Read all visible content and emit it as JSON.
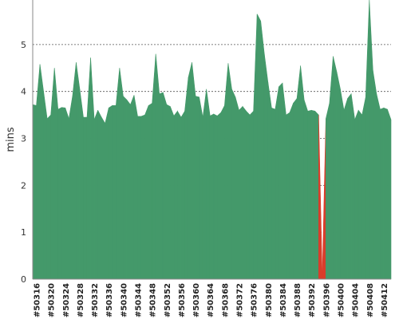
{
  "chart_data": {
    "type": "area",
    "ylabel": "mins",
    "xlabel": "",
    "title": "",
    "ylim": [
      0,
      5.95
    ],
    "yticks": [
      0,
      1,
      2,
      3,
      4,
      5
    ],
    "grid": "horizontal dashed",
    "colors": {
      "ok": "#44996a",
      "fail": "#d93d2b",
      "grid": "#555555",
      "axis": "#888888"
    },
    "tick_labels": [
      "#50316",
      "#50320",
      "#50324",
      "#50328",
      "#50332",
      "#50336",
      "#50340",
      "#50344",
      "#50348",
      "#50352",
      "#50356",
      "#50360",
      "#50364",
      "#50368",
      "#50372",
      "#50376",
      "#50380",
      "#50384",
      "#50388",
      "#50392",
      "#50396",
      "#50400",
      "#50404",
      "#50408",
      "#50412"
    ],
    "x": [
      50315,
      50316,
      50317,
      50318,
      50319,
      50320,
      50321,
      50322,
      50323,
      50324,
      50325,
      50326,
      50327,
      50328,
      50329,
      50330,
      50331,
      50332,
      50333,
      50334,
      50335,
      50336,
      50337,
      50338,
      50339,
      50340,
      50341,
      50342,
      50343,
      50344,
      50345,
      50346,
      50347,
      50348,
      50349,
      50350,
      50351,
      50352,
      50353,
      50354,
      50355,
      50356,
      50357,
      50358,
      50359,
      50360,
      50361,
      50362,
      50363,
      50364,
      50365,
      50366,
      50367,
      50368,
      50369,
      50370,
      50371,
      50372,
      50373,
      50374,
      50375,
      50376,
      50377,
      50378,
      50379,
      50380,
      50381,
      50382,
      50383,
      50384,
      50385,
      50386,
      50387,
      50388,
      50389,
      50390,
      50391,
      50392,
      50393,
      50394,
      50395,
      50396,
      50397,
      50398,
      50399,
      50400,
      50401,
      50402,
      50403,
      50404,
      50405,
      50406,
      50407,
      50408,
      50409,
      50410,
      50411,
      50412,
      50413,
      50414
    ],
    "values": [
      3.72,
      3.7,
      4.58,
      4.0,
      3.42,
      3.5,
      4.5,
      3.62,
      3.66,
      3.65,
      3.42,
      3.9,
      4.62,
      4.05,
      3.45,
      3.45,
      4.72,
      3.4,
      3.6,
      3.45,
      3.32,
      3.65,
      3.7,
      3.7,
      4.5,
      3.9,
      3.82,
      3.72,
      3.92,
      3.47,
      3.47,
      3.5,
      3.7,
      3.75,
      4.8,
      3.95,
      3.98,
      3.72,
      3.68,
      3.48,
      3.58,
      3.45,
      3.58,
      4.3,
      4.62,
      3.9,
      3.88,
      3.45,
      4.05,
      3.48,
      3.52,
      3.48,
      3.55,
      3.7,
      4.6,
      4.05,
      3.88,
      3.6,
      3.68,
      3.58,
      3.5,
      3.58,
      5.65,
      5.5,
      4.8,
      4.2,
      3.65,
      3.62,
      4.1,
      4.18,
      3.5,
      3.55,
      3.75,
      3.85,
      4.55,
      3.82,
      3.58,
      3.6,
      3.58,
      3.5,
      0.05,
      3.42,
      3.75,
      4.75,
      4.42,
      4.05,
      3.6,
      3.85,
      3.95,
      3.4,
      3.6,
      3.5,
      3.88,
      5.95,
      4.45,
      3.95,
      3.62,
      3.65,
      3.62,
      3.4
    ],
    "failed_points": [
      50395
    ]
  }
}
